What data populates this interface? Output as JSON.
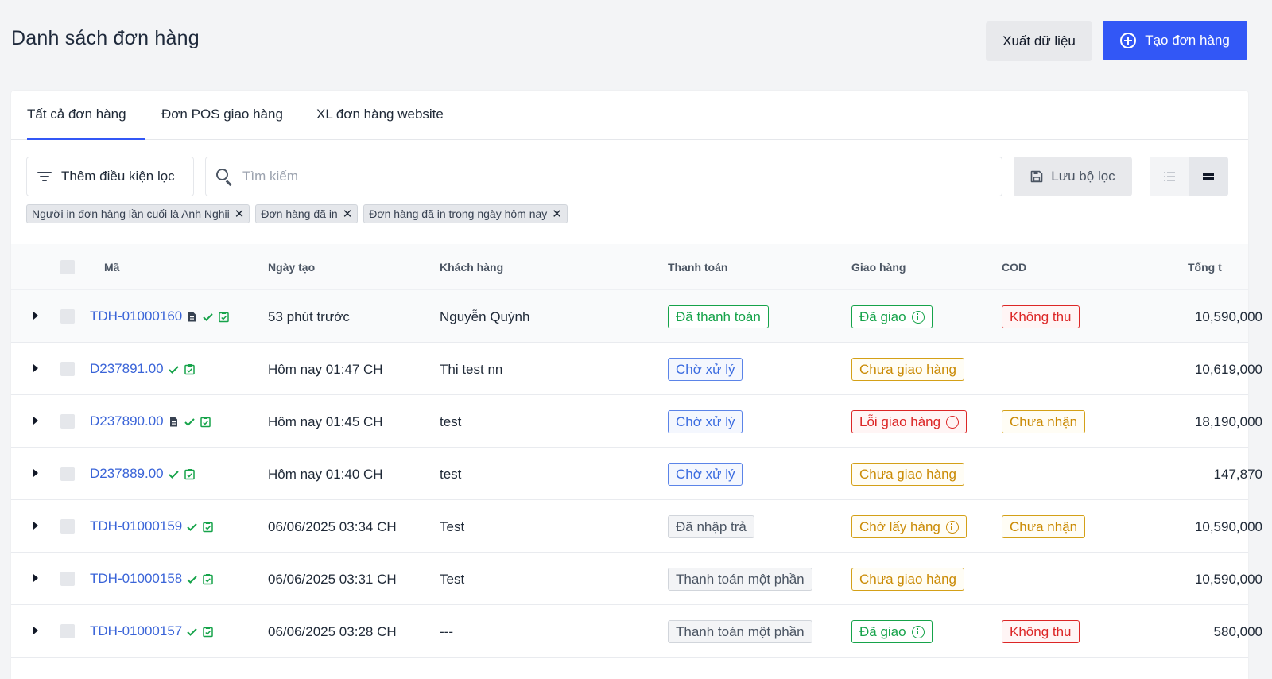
{
  "header": {
    "title": "Danh sách đơn hàng",
    "export_label": "Xuất dữ liệu",
    "create_label": "Tạo đơn hàng"
  },
  "tabs": [
    {
      "label": "Tất cả đơn hàng",
      "active": true
    },
    {
      "label": "Đơn POS giao hàng",
      "active": false
    },
    {
      "label": "XL đơn hàng website",
      "active": false
    }
  ],
  "toolbar": {
    "filter_label": "Thêm điều kiện lọc",
    "search_placeholder": "Tìm kiếm",
    "save_filter_label": "Lưu bộ lọc"
  },
  "chips": [
    "Người in đơn hàng lần cuối là Anh Nghii",
    "Đơn hàng đã in",
    "Đơn hàng đã in trong ngày hôm nay"
  ],
  "columns": {
    "code": "Mã",
    "created": "Ngày tạo",
    "customer": "Khách hàng",
    "payment": "Thanh toán",
    "delivery": "Giao hàng",
    "cod": "COD",
    "total": "Tổng t"
  },
  "rows": [
    {
      "code": "TDH-01000160",
      "has_doc": true,
      "created": "53 phút trước",
      "customer": "Nguyễn Quỳnh",
      "payment": "Đã thanh toán",
      "payment_style": "green",
      "delivery": "Đã giao",
      "delivery_style": "green",
      "delivery_info": true,
      "cod": "Không thu",
      "cod_style": "red",
      "total": "10,590,000"
    },
    {
      "code": "D237891.00",
      "has_doc": false,
      "created": "Hôm nay 01:47 CH",
      "customer": "Thi test nn",
      "payment": "Chờ xử lý",
      "payment_style": "blue",
      "delivery": "Chưa giao hàng",
      "delivery_style": "yellow",
      "delivery_info": false,
      "cod": "",
      "cod_style": "",
      "total": "10,619,000"
    },
    {
      "code": "D237890.00",
      "has_doc": true,
      "created": "Hôm nay 01:45 CH",
      "customer": "test",
      "payment": "Chờ xử lý",
      "payment_style": "blue",
      "delivery": "Lỗi giao hàng",
      "delivery_style": "red",
      "delivery_info": true,
      "cod": "Chưa nhận",
      "cod_style": "yellow",
      "total": "18,190,000"
    },
    {
      "code": "D237889.00",
      "has_doc": false,
      "created": "Hôm nay 01:40 CH",
      "customer": "test",
      "payment": "Chờ xử lý",
      "payment_style": "blue",
      "delivery": "Chưa giao hàng",
      "delivery_style": "yellow",
      "delivery_info": false,
      "cod": "",
      "cod_style": "",
      "total": "147,870"
    },
    {
      "code": "TDH-01000159",
      "has_doc": false,
      "created": "06/06/2025 03:34 CH",
      "customer": "Test",
      "payment": "Đã nhập trả",
      "payment_style": "gray",
      "delivery": "Chờ lấy hàng",
      "delivery_style": "yellow",
      "delivery_info": true,
      "cod": "Chưa nhận",
      "cod_style": "yellow",
      "total": "10,590,000"
    },
    {
      "code": "TDH-01000158",
      "has_doc": false,
      "created": "06/06/2025 03:31 CH",
      "customer": "Test",
      "payment": "Thanh toán một phần",
      "payment_style": "gray",
      "delivery": "Chưa giao hàng",
      "delivery_style": "yellow",
      "delivery_info": false,
      "cod": "",
      "cod_style": "",
      "total": "10,590,000"
    },
    {
      "code": "TDH-01000157",
      "has_doc": false,
      "created": "06/06/2025 03:28 CH",
      "customer": "---",
      "payment": "Thanh toán một phần",
      "payment_style": "gray",
      "delivery": "Đã giao",
      "delivery_style": "green",
      "delivery_info": true,
      "cod": "Không thu",
      "cod_style": "red",
      "total": "580,000"
    }
  ],
  "colors": {
    "primary": "#3257f6",
    "link": "#3a64d8",
    "success": "#16a34a",
    "warning": "#ca8a04",
    "danger": "#dc2626"
  },
  "icons": [
    "filter-icon",
    "search-icon",
    "save-icon",
    "list-view-icon",
    "compact-view-icon",
    "plus-circle-icon",
    "close-icon",
    "document-icon",
    "check-icon",
    "clipboard-check-icon",
    "info-icon",
    "caret-right-icon"
  ]
}
